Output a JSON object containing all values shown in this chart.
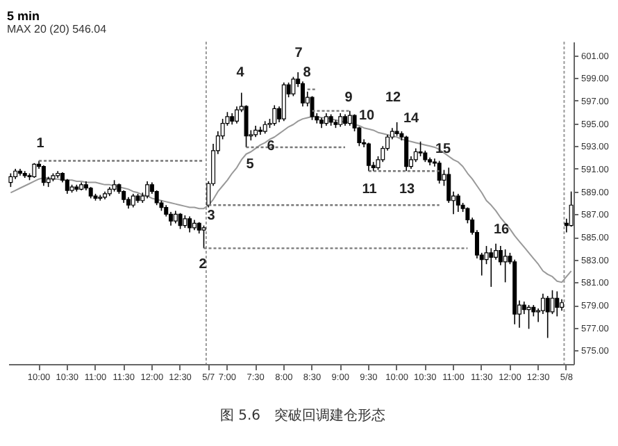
{
  "chart_data": {
    "type": "candlestick",
    "title": "5 min",
    "subtitle": "MAX 20 (20) 546.04",
    "categories": [
      null,
      null,
      null,
      null,
      null,
      null,
      "10:00",
      null,
      null,
      null,
      null,
      null,
      "10:30",
      null,
      null,
      null,
      null,
      null,
      "11:00",
      null,
      null,
      null,
      null,
      null,
      "11:30",
      null,
      null,
      null,
      null,
      null,
      "12:00",
      null,
      null,
      null,
      null,
      null,
      "12:30",
      null,
      null,
      null,
      null,
      null,
      "5/7",
      null,
      null,
      null,
      "7:00",
      null,
      null,
      null,
      null,
      null,
      "7:30",
      null,
      null,
      null,
      null,
      null,
      "8:00",
      null,
      null,
      null,
      null,
      null,
      "8:30",
      null,
      null,
      null,
      null,
      null,
      "9:00",
      null,
      null,
      null,
      null,
      null,
      "9:30",
      null,
      null,
      null,
      null,
      null,
      "10:00",
      null,
      null,
      null,
      null,
      null,
      "10:30",
      null,
      null,
      null,
      null,
      null,
      "11:00",
      null,
      null,
      null,
      null,
      null,
      "11:30",
      null,
      null,
      null,
      null,
      null,
      "12:00",
      null,
      null,
      null,
      null,
      null,
      "12:30",
      null,
      null,
      null,
      null,
      null,
      "5/8",
      null
    ],
    "ohlc": [
      [
        589.8,
        590.6,
        589.4,
        590.3
      ],
      [
        590.3,
        591.0,
        590.1,
        590.8
      ],
      [
        590.8,
        591.0,
        590.4,
        590.6
      ],
      [
        590.6,
        590.8,
        590.2,
        590.4
      ],
      [
        590.4,
        590.6,
        590.0,
        590.3
      ],
      [
        590.3,
        591.5,
        590.2,
        591.4
      ],
      [
        591.4,
        591.7,
        591.0,
        591.2
      ],
      [
        591.2,
        591.3,
        589.5,
        589.8
      ],
      [
        589.8,
        590.3,
        589.4,
        590.1
      ],
      [
        590.1,
        590.6,
        589.9,
        590.4
      ],
      [
        590.4,
        590.8,
        590.2,
        590.6
      ],
      [
        590.6,
        590.7,
        589.8,
        590.0
      ],
      [
        590.0,
        590.1,
        588.8,
        589.1
      ],
      [
        589.1,
        589.6,
        588.9,
        589.4
      ],
      [
        589.4,
        589.6,
        589.0,
        589.2
      ],
      [
        589.2,
        589.8,
        589.1,
        589.6
      ],
      [
        589.6,
        589.9,
        589.1,
        589.3
      ],
      [
        589.3,
        589.4,
        588.4,
        588.6
      ],
      [
        588.6,
        588.8,
        588.2,
        588.4
      ],
      [
        588.4,
        588.7,
        588.2,
        588.5
      ],
      [
        588.5,
        589.0,
        588.3,
        588.8
      ],
      [
        588.8,
        589.4,
        588.6,
        589.2
      ],
      [
        589.2,
        590.0,
        589.0,
        589.6
      ],
      [
        589.6,
        589.7,
        588.8,
        589.0
      ],
      [
        589.0,
        589.1,
        588.0,
        588.3
      ],
      [
        588.3,
        588.5,
        587.5,
        587.8
      ],
      [
        587.8,
        588.8,
        587.6,
        588.6
      ],
      [
        588.6,
        588.8,
        588.0,
        588.2
      ],
      [
        588.2,
        588.9,
        588.0,
        588.6
      ],
      [
        588.6,
        589.9,
        588.4,
        589.6
      ],
      [
        589.6,
        589.8,
        588.8,
        589.0
      ],
      [
        589.0,
        589.1,
        587.8,
        588.0
      ],
      [
        588.0,
        588.2,
        587.3,
        587.6
      ],
      [
        587.6,
        587.8,
        586.8,
        587.0
      ],
      [
        587.0,
        587.2,
        586.0,
        586.4
      ],
      [
        586.4,
        587.3,
        586.2,
        587.0
      ],
      [
        587.0,
        587.1,
        585.7,
        586.0
      ],
      [
        586.0,
        586.9,
        585.8,
        586.6
      ],
      [
        586.6,
        586.8,
        585.4,
        585.8
      ],
      [
        585.8,
        586.5,
        585.6,
        586.2
      ],
      [
        586.2,
        586.3,
        585.3,
        585.6
      ],
      [
        585.6,
        586.0,
        584.0,
        585.8
      ],
      [
        587.8,
        589.9,
        587.6,
        589.7
      ],
      [
        589.7,
        593.2,
        589.5,
        592.6
      ],
      [
        592.6,
        594.3,
        592.3,
        593.9
      ],
      [
        593.9,
        595.4,
        593.6,
        595.0
      ],
      [
        595.0,
        596.0,
        594.8,
        595.6
      ],
      [
        595.6,
        595.9,
        594.9,
        595.2
      ],
      [
        595.2,
        596.5,
        595.0,
        596.2
      ],
      [
        596.2,
        597.7,
        596.0,
        596.5
      ],
      [
        596.5,
        596.6,
        592.9,
        593.9
      ],
      [
        593.9,
        594.4,
        593.5,
        594.0
      ],
      [
        594.0,
        594.8,
        593.8,
        594.4
      ],
      [
        594.4,
        594.7,
        594.0,
        594.3
      ],
      [
        594.3,
        595.2,
        594.1,
        594.9
      ],
      [
        594.9,
        595.4,
        594.6,
        595.0
      ],
      [
        595.0,
        596.6,
        594.8,
        596.3
      ],
      [
        596.3,
        596.5,
        595.1,
        595.4
      ],
      [
        595.4,
        598.6,
        595.2,
        598.4
      ],
      [
        598.4,
        598.6,
        597.3,
        597.6
      ],
      [
        597.6,
        599.1,
        597.4,
        598.9
      ],
      [
        598.9,
        599.5,
        598.2,
        598.5
      ],
      [
        598.5,
        598.7,
        596.5,
        596.8
      ],
      [
        596.8,
        597.8,
        596.5,
        597.3
      ],
      [
        597.3,
        597.4,
        595.3,
        595.6
      ],
      [
        595.6,
        595.9,
        595.0,
        595.3
      ],
      [
        595.3,
        595.5,
        594.6,
        595.0
      ],
      [
        595.0,
        595.9,
        594.8,
        595.6
      ],
      [
        595.6,
        595.8,
        594.8,
        595.1
      ],
      [
        595.1,
        595.3,
        594.6,
        594.9
      ],
      [
        594.9,
        595.9,
        594.7,
        595.6
      ],
      [
        595.6,
        595.8,
        594.8,
        595.0
      ],
      [
        595.0,
        596.1,
        594.8,
        595.7
      ],
      [
        595.7,
        595.8,
        594.3,
        594.6
      ],
      [
        594.6,
        594.7,
        593.0,
        593.3
      ],
      [
        593.3,
        593.6,
        592.9,
        593.2
      ],
      [
        593.2,
        593.3,
        590.8,
        591.3
      ],
      [
        591.3,
        591.6,
        590.8,
        591.1
      ],
      [
        591.1,
        592.1,
        590.9,
        591.8
      ],
      [
        591.8,
        593.0,
        591.6,
        592.8
      ],
      [
        592.8,
        594.0,
        592.6,
        593.8
      ],
      [
        593.8,
        594.6,
        593.6,
        594.3
      ],
      [
        594.3,
        595.1,
        593.9,
        594.1
      ],
      [
        594.1,
        594.3,
        593.5,
        593.8
      ],
      [
        593.8,
        593.9,
        590.8,
        591.2
      ],
      [
        591.2,
        592.1,
        591.0,
        591.8
      ],
      [
        591.8,
        592.8,
        591.6,
        592.5
      ],
      [
        592.5,
        593.4,
        592.1,
        592.4
      ],
      [
        592.4,
        592.6,
        591.6,
        591.8
      ],
      [
        591.8,
        592.0,
        591.3,
        591.6
      ],
      [
        591.6,
        591.9,
        591.2,
        591.5
      ],
      [
        591.5,
        591.7,
        589.7,
        590.0
      ],
      [
        590.0,
        590.9,
        589.5,
        590.5
      ],
      [
        590.5,
        591.1,
        588.0,
        588.2
      ],
      [
        588.2,
        589.0,
        587.0,
        588.6
      ],
      [
        588.6,
        588.8,
        587.2,
        587.8
      ],
      [
        587.8,
        588.0,
        587.2,
        587.5
      ],
      [
        587.5,
        587.6,
        586.2,
        586.5
      ],
      [
        586.5,
        586.7,
        585.2,
        585.4
      ],
      [
        585.4,
        585.6,
        583.1,
        583.4
      ],
      [
        583.4,
        583.6,
        581.6,
        583.0
      ],
      [
        583.0,
        584.2,
        582.6,
        583.6
      ],
      [
        583.6,
        584.0,
        580.6,
        583.2
      ],
      [
        583.2,
        584.4,
        583.0,
        583.8
      ],
      [
        583.8,
        584.2,
        582.5,
        582.8
      ],
      [
        582.8,
        583.9,
        581.0,
        583.3
      ],
      [
        583.3,
        583.6,
        582.6,
        582.8
      ],
      [
        582.8,
        583.0,
        577.3,
        578.2
      ],
      [
        578.2,
        579.4,
        577.0,
        579.0
      ],
      [
        579.0,
        579.3,
        578.2,
        578.6
      ],
      [
        578.6,
        579.0,
        576.9,
        578.8
      ],
      [
        578.8,
        579.0,
        578.0,
        578.4
      ],
      [
        578.4,
        578.7,
        577.5,
        578.5
      ],
      [
        578.5,
        580.0,
        578.2,
        579.6
      ],
      [
        579.6,
        579.8,
        576.1,
        578.4
      ],
      [
        578.4,
        580.3,
        578.2,
        579.6
      ],
      [
        579.6,
        580.2,
        578.0,
        578.8
      ],
      [
        578.8,
        579.5,
        578.5,
        579.2
      ],
      [
        586.2,
        586.6,
        585.4,
        586.0
      ],
      [
        586.0,
        589.0,
        585.9,
        587.8
      ]
    ],
    "series": [
      {
        "type": "line",
        "color": "#999999",
        "values": [
          588.9,
          589.1,
          589.3,
          589.5,
          589.7,
          589.9,
          590.1,
          590.2,
          590.2,
          590.1,
          590.1,
          590.0,
          590.0,
          590.0,
          589.9,
          589.9,
          589.8,
          589.8,
          589.8,
          589.7,
          589.6,
          589.6,
          589.5,
          589.4,
          589.3,
          589.2,
          589.0,
          588.9,
          588.7,
          588.6,
          588.4,
          588.3,
          588.2,
          588.1,
          588.0,
          587.9,
          587.8,
          587.7,
          587.6,
          587.6,
          587.5,
          587.5,
          587.8,
          588.3,
          589.0,
          589.5,
          590.0,
          590.6,
          591.1,
          591.8,
          592.3,
          592.5,
          592.8,
          593.1,
          593.3,
          593.6,
          593.8,
          594.1,
          594.4,
          594.7,
          594.9,
          595.2,
          595.4,
          595.5,
          595.6,
          595.6,
          595.5,
          595.5,
          595.4,
          595.3,
          595.2,
          595.1,
          595.1,
          594.9,
          594.8,
          594.6,
          594.5,
          594.4,
          594.2,
          594.1,
          594.0,
          593.9,
          593.8,
          593.6,
          593.5,
          593.4,
          593.3,
          593.2,
          593.1,
          593.0,
          592.9,
          592.7,
          592.4,
          592.1,
          591.8,
          591.6,
          591.2,
          590.6,
          590.1,
          589.5,
          588.9,
          588.2,
          587.8,
          587.3,
          586.7,
          586.2,
          585.7,
          585.1,
          584.6,
          584.1,
          583.6,
          583.1,
          582.6,
          582.0,
          581.7,
          581.5,
          581.1,
          581.0,
          581.5,
          582.0
        ]
      },
      {
        "type": "line",
        "color": "#777777",
        "line_style": "dotted",
        "values": [
          null,
          null,
          null,
          null,
          null,
          null,
          591.7,
          591.7,
          591.7,
          591.7,
          591.7,
          591.7,
          591.7,
          591.7,
          591.7,
          591.7,
          591.7,
          591.7,
          591.7,
          591.7,
          591.7,
          591.7,
          591.7,
          591.7,
          591.7,
          591.7,
          591.7,
          591.7,
          591.7,
          591.7,
          591.7,
          591.7,
          591.7,
          591.7,
          591.7,
          591.7,
          591.7,
          591.7,
          591.7,
          591.7,
          591.7,
          591.7,
          null,
          null,
          null,
          null,
          null,
          null,
          null,
          null,
          null,
          null,
          null,
          null,
          null,
          null,
          null,
          null,
          null,
          null,
          null,
          null,
          null,
          null,
          null,
          null,
          null,
          null,
          null,
          null,
          null,
          null,
          null,
          null,
          null,
          null,
          null,
          null,
          null,
          null,
          null,
          null,
          null,
          null,
          null,
          null,
          null,
          null,
          null,
          null,
          null,
          null,
          null,
          null,
          null,
          null,
          null,
          null,
          null,
          null,
          null,
          null,
          null,
          null,
          null,
          null,
          null,
          null,
          null,
          null,
          null,
          null,
          null,
          null,
          null,
          null,
          null,
          null,
          null,
          null
        ]
      },
      {
        "type": "line",
        "color": "#777777",
        "line_style": "dotted",
        "values": [
          null,
          null,
          null,
          null,
          null,
          null,
          null,
          null,
          null,
          null,
          null,
          null,
          null,
          null,
          null,
          null,
          null,
          null,
          null,
          null,
          null,
          null,
          null,
          null,
          null,
          null,
          null,
          null,
          null,
          null,
          null,
          null,
          null,
          null,
          null,
          null,
          null,
          null,
          null,
          null,
          null,
          null,
          587.8,
          587.8,
          587.8,
          587.8,
          587.8,
          587.8,
          587.8,
          587.8,
          587.8,
          587.8,
          587.8,
          587.8,
          587.8,
          587.8,
          587.8,
          587.8,
          587.8,
          587.8,
          587.8,
          587.8,
          587.8,
          587.8,
          587.8,
          587.8,
          587.8,
          587.8,
          587.8,
          587.8,
          587.8,
          587.8,
          587.8,
          587.8,
          587.8,
          587.8,
          587.8,
          587.8,
          587.8,
          587.8,
          587.8,
          587.8,
          587.8,
          587.8,
          587.8,
          587.8,
          587.8,
          587.8,
          587.8,
          587.8,
          587.8,
          587.8,
          null,
          null,
          null,
          null,
          null,
          null,
          null,
          null,
          null,
          null,
          null,
          null,
          null,
          null,
          null,
          null,
          null,
          null,
          null,
          null,
          null,
          null,
          null,
          null,
          null,
          null,
          null,
          null
        ]
      },
      {
        "type": "line",
        "color": "#777777",
        "line_style": "dotted",
        "values": [
          null,
          null,
          null,
          null,
          null,
          null,
          null,
          null,
          null,
          null,
          null,
          null,
          null,
          null,
          null,
          null,
          null,
          null,
          null,
          null,
          null,
          null,
          null,
          null,
          null,
          null,
          null,
          null,
          null,
          null,
          null,
          null,
          null,
          null,
          null,
          null,
          null,
          null,
          null,
          null,
          null,
          584.0,
          584.0,
          584.0,
          584.0,
          584.0,
          584.0,
          584.0,
          584.0,
          584.0,
          584.0,
          584.0,
          584.0,
          584.0,
          584.0,
          584.0,
          584.0,
          584.0,
          584.0,
          584.0,
          584.0,
          584.0,
          584.0,
          584.0,
          584.0,
          584.0,
          584.0,
          584.0,
          584.0,
          584.0,
          584.0,
          584.0,
          584.0,
          584.0,
          584.0,
          584.0,
          584.0,
          584.0,
          584.0,
          584.0,
          584.0,
          584.0,
          584.0,
          584.0,
          584.0,
          584.0,
          584.0,
          584.0,
          584.0,
          584.0,
          584.0,
          584.0,
          584.0,
          584.0,
          584.0,
          584.0,
          584.0,
          584.0,
          null,
          null,
          null,
          null,
          null,
          null,
          null,
          null,
          null,
          null,
          null,
          null,
          null,
          null,
          null,
          null,
          null,
          null,
          null,
          null,
          null,
          null
        ]
      },
      {
        "type": "line",
        "color": "#777777",
        "line_style": "dotted",
        "values": [
          null,
          null,
          null,
          null,
          null,
          null,
          null,
          null,
          null,
          null,
          null,
          null,
          null,
          null,
          null,
          null,
          null,
          null,
          null,
          null,
          null,
          null,
          null,
          null,
          null,
          null,
          null,
          null,
          null,
          null,
          null,
          null,
          null,
          null,
          null,
          null,
          null,
          null,
          null,
          null,
          null,
          null,
          null,
          null,
          null,
          null,
          null,
          null,
          null,
          null,
          592.9,
          592.9,
          592.9,
          592.9,
          592.9,
          592.9,
          592.9,
          592.9,
          592.9,
          592.9,
          592.9,
          592.9,
          592.9,
          592.9,
          592.9,
          592.9,
          592.9,
          592.9,
          592.9,
          592.9,
          592.9,
          592.9,
          null,
          null,
          null,
          null,
          null,
          null,
          null,
          null,
          null,
          null,
          null,
          null,
          null,
          null,
          null,
          null,
          null,
          null,
          null,
          null,
          null,
          null,
          null,
          null,
          null,
          null,
          null,
          null,
          null,
          null,
          null,
          null,
          null,
          null,
          null,
          null,
          null,
          null,
          null,
          null,
          null,
          null,
          null,
          null,
          null,
          null,
          null,
          null
        ]
      },
      {
        "type": "line",
        "color": "#777777",
        "line_style": "dotted",
        "values": [
          null,
          null,
          null,
          null,
          null,
          null,
          null,
          null,
          null,
          null,
          null,
          null,
          null,
          null,
          null,
          null,
          null,
          null,
          null,
          null,
          null,
          null,
          null,
          null,
          null,
          null,
          null,
          null,
          null,
          null,
          null,
          null,
          null,
          null,
          null,
          null,
          null,
          null,
          null,
          null,
          null,
          null,
          null,
          null,
          null,
          null,
          null,
          null,
          null,
          null,
          null,
          null,
          null,
          null,
          null,
          null,
          null,
          null,
          null,
          null,
          null,
          null,
          null,
          null,
          596.1,
          596.1,
          596.1,
          596.1,
          596.1,
          596.1,
          596.1,
          596.1,
          596.1,
          null,
          null,
          null,
          null,
          null,
          null,
          null,
          null,
          null,
          null,
          null,
          null,
          null,
          null,
          null,
          null,
          null,
          null,
          null,
          null,
          null,
          null,
          null,
          null,
          null,
          null,
          null,
          null,
          null,
          null,
          null,
          null,
          null,
          null,
          null,
          null,
          null,
          null,
          null,
          null,
          null,
          null,
          null,
          null,
          null,
          null,
          null
        ]
      },
      {
        "type": "line",
        "color": "#767676",
        "line_style": "dotted",
        "values": [
          null,
          null,
          null,
          null,
          null,
          null,
          null,
          null,
          null,
          null,
          null,
          null,
          null,
          null,
          null,
          null,
          null,
          null,
          null,
          null,
          null,
          null,
          null,
          null,
          null,
          null,
          null,
          null,
          null,
          null,
          null,
          null,
          null,
          null,
          null,
          null,
          null,
          null,
          null,
          null,
          null,
          null,
          null,
          null,
          null,
          null,
          null,
          null,
          null,
          null,
          null,
          null,
          null,
          null,
          null,
          null,
          null,
          null,
          null,
          null,
          null,
          null,
          null,
          598.0,
          598.0,
          598.0,
          null,
          null,
          null,
          null,
          null,
          null,
          null,
          null,
          null,
          null,
          null,
          null,
          null,
          null,
          null,
          null,
          null,
          null,
          null,
          null,
          null,
          null,
          null,
          null,
          null,
          null,
          null,
          null,
          null,
          null,
          null,
          null,
          null,
          null,
          null,
          null,
          null,
          null,
          null,
          null,
          null,
          null,
          null,
          null,
          null,
          null,
          null,
          null,
          null,
          null,
          null,
          null,
          null,
          null
        ]
      },
      {
        "type": "line",
        "color": "#757575",
        "line_style": "dotted",
        "values": [
          null,
          null,
          null,
          null,
          null,
          null,
          null,
          null,
          null,
          null,
          null,
          null,
          null,
          null,
          null,
          null,
          null,
          null,
          null,
          null,
          null,
          null,
          null,
          null,
          null,
          null,
          null,
          null,
          null,
          null,
          null,
          null,
          null,
          null,
          null,
          null,
          null,
          null,
          null,
          null,
          null,
          null,
          null,
          null,
          null,
          null,
          null,
          null,
          null,
          null,
          null,
          null,
          null,
          null,
          null,
          null,
          null,
          null,
          null,
          null,
          null,
          null,
          null,
          null,
          null,
          null,
          null,
          null,
          null,
          null,
          null,
          null,
          null,
          null,
          null,
          null,
          590.8,
          590.8,
          590.8,
          590.8,
          590.8,
          590.8,
          590.8,
          590.8,
          590.8,
          590.8,
          590.8,
          590.8,
          590.8,
          590.8,
          590.8,
          590.8,
          null,
          null,
          null,
          null,
          null,
          null,
          null,
          null,
          null,
          null,
          null,
          null,
          null,
          null,
          null,
          null,
          null,
          null,
          null,
          null,
          null,
          null,
          null,
          null,
          null,
          null,
          null,
          null
        ]
      }
    ],
    "ref_lines": [
      {
        "axis": "x",
        "value": "5/7",
        "color": "#999999",
        "line_style": "dotted"
      },
      {
        "axis": "x",
        "value": "5/8",
        "color": "#999999",
        "line_style": "dotted"
      }
    ],
    "annotations": [
      "1",
      "2",
      "3",
      "4",
      "5",
      "6",
      "7",
      "8",
      "9",
      "10",
      "11",
      "12",
      "13",
      "14",
      "15",
      "16",
      "图 5.6　突破回调建仓形态"
    ],
    "ylim": [
      573.8,
      602.2
    ],
    "yticks": [
      {
        "value": 575,
        "label": "575.00"
      },
      {
        "value": 577,
        "label": "577.00"
      },
      {
        "value": 579,
        "label": "579.00"
      },
      {
        "value": 581,
        "label": "581.00"
      },
      {
        "value": 583,
        "label": "583.00"
      },
      {
        "value": 585,
        "label": "585.00"
      },
      {
        "value": 587,
        "label": "587.00"
      },
      {
        "value": 589,
        "label": "589.00"
      },
      {
        "value": 591,
        "label": "591.00"
      },
      {
        "value": 593,
        "label": "593.00"
      },
      {
        "value": 595,
        "label": "595.00"
      },
      {
        "value": 597,
        "label": "597.00"
      },
      {
        "value": 599,
        "label": "599.00"
      },
      {
        "value": 601,
        "label": "601.00"
      }
    ]
  }
}
